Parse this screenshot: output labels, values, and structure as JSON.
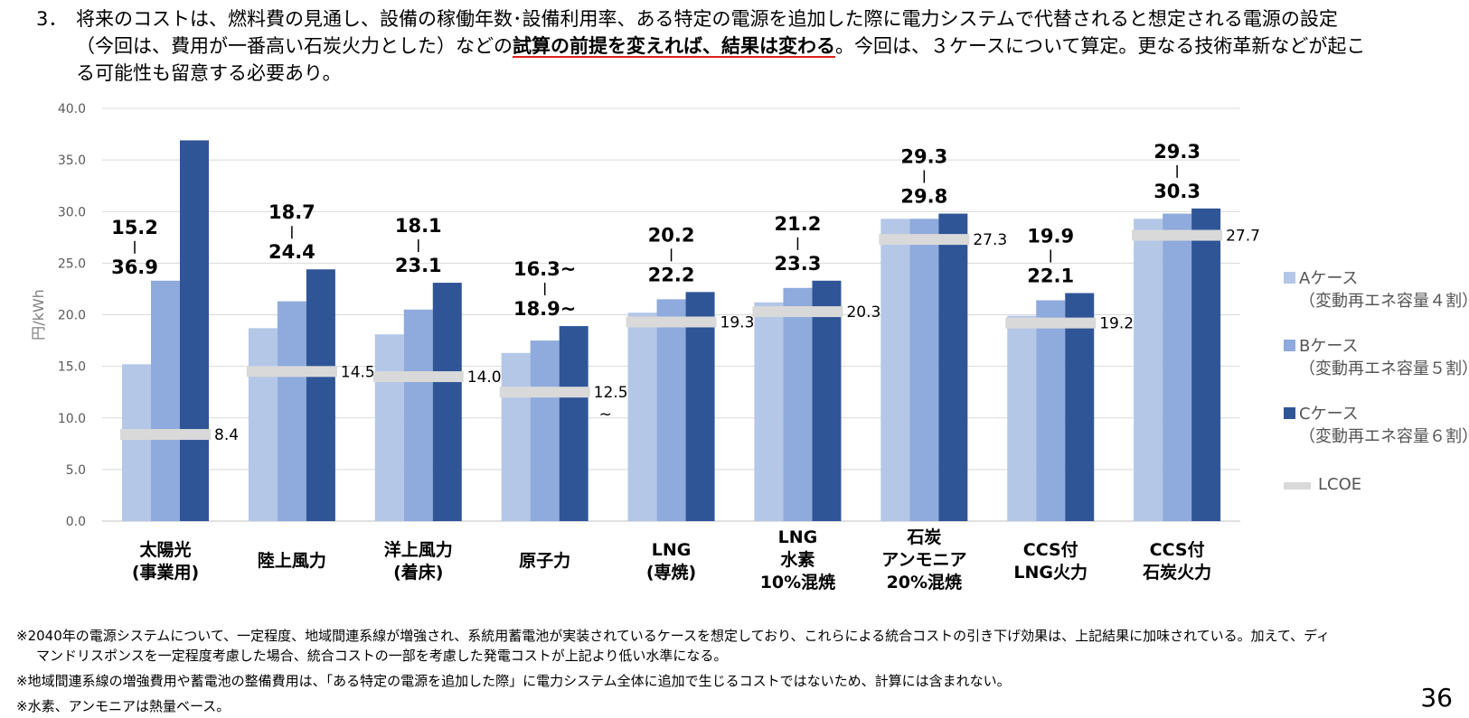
{
  "header": {
    "number": "3．",
    "line1": "将来のコストは、燃料費の見通し、設備の稼働年数･設備利用率、ある特定の電源を追加した際に電力システムで代替されると想定される電源の設定",
    "line2_pre": "（今回は、費用が一番高い石炭火力とした）などの",
    "line2_em": "試算の前提を変えれば、結果は変わる",
    "line2_post": "。今回は、３ケースについて算定。更なる技術革新などが起こ",
    "line3": "る可能性も留意する必要あり。"
  },
  "chart_data": {
    "type": "bar",
    "ylabel": "円/kWh",
    "ylim": [
      0,
      40
    ],
    "yticks": [
      "0.0",
      "5.0",
      "10.0",
      "15.0",
      "20.0",
      "25.0",
      "30.0",
      "35.0",
      "40.0"
    ],
    "grid": true,
    "legend_position": "right",
    "categories": [
      [
        "太陽光",
        "(事業用)"
      ],
      [
        "陸上風力"
      ],
      [
        "洋上風力",
        "(着床)"
      ],
      [
        "原子力"
      ],
      [
        "LNG",
        "(専焼)"
      ],
      [
        "LNG",
        "水素",
        "10%混焼"
      ],
      [
        "石炭",
        "アンモニア",
        "20%混焼"
      ],
      [
        "CCS付",
        "LNG火力"
      ],
      [
        "CCS付",
        "石炭火力"
      ]
    ],
    "series": [
      {
        "name": "Aケース",
        "desc": "（変動再エネ容量４割）",
        "color": "#b4c7e7",
        "values": [
          15.2,
          18.7,
          18.1,
          16.3,
          20.2,
          21.2,
          29.3,
          19.9,
          29.3
        ]
      },
      {
        "name": "Bケース",
        "desc": "（変動再エネ容量５割）",
        "color": "#8faadc",
        "values": [
          23.3,
          21.3,
          20.5,
          17.5,
          21.5,
          22.6,
          29.3,
          21.4,
          29.8
        ]
      },
      {
        "name": "Cケース",
        "desc": "（変動再エネ容量６割）",
        "color": "#2f5597",
        "values": [
          36.9,
          24.4,
          23.1,
          18.9,
          22.2,
          23.3,
          29.8,
          22.1,
          30.3
        ]
      }
    ],
    "lcoe": {
      "name": "LCOE",
      "color": "#d9d9d9",
      "values": [
        8.4,
        14.5,
        14.0,
        12.5,
        19.3,
        20.3,
        27.3,
        19.2,
        27.7
      ],
      "labels": [
        "8.4",
        "14.5",
        "14.0",
        "12.5",
        "19.3",
        "20.3",
        "27.3",
        "19.2",
        "27.7"
      ],
      "label_suffix": [
        "",
        "",
        "",
        "~",
        "",
        "",
        "",
        "",
        ""
      ]
    },
    "range_labels": [
      {
        "top": "15.2",
        "bottom": "36.9"
      },
      {
        "top": "18.7",
        "bottom": "24.4"
      },
      {
        "top": "18.1",
        "bottom": "23.1"
      },
      {
        "top": "16.3~",
        "bottom": "18.9~"
      },
      {
        "top": "20.2",
        "bottom": "22.2"
      },
      {
        "top": "21.2",
        "bottom": "23.3"
      },
      {
        "top": "29.3",
        "bottom": "29.8"
      },
      {
        "top": "19.9",
        "bottom": "22.1"
      },
      {
        "top": "29.3",
        "bottom": "30.3"
      }
    ]
  },
  "notes": [
    "※2040年の電源システムについて、一定程度、地域間連系線が増強され、系統用蓄電池が実装されているケースを想定しており、これらによる統合コストの引き下げ効果は、上記結果に加味されている。加えて、ディ",
    "マンドリスポンスを一定程度考慮した場合、統合コストの一部を考慮した発電コストが上記より低い水準になる。",
    "※地域間連系線の増強費用や蓄電池の整備費用は、「ある特定の電源を追加した際」に電力システム全体に追加で生じるコストではないため、計算には含まれない。",
    "※水素、アンモニアは熱量ベース。"
  ],
  "page_number": "36"
}
